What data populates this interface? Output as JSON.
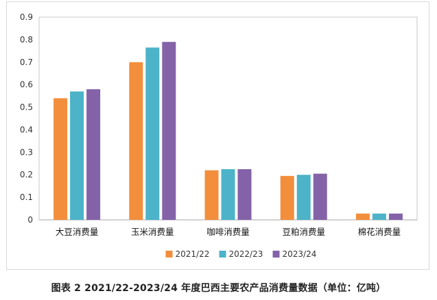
{
  "caption": "图表 2 2021/22-2023/24 年度巴西主要农产品消费量数据（单位：亿吨）",
  "chart_data": {
    "type": "bar",
    "title": "",
    "xlabel": "",
    "ylabel": "",
    "ylim": [
      0,
      0.9
    ],
    "yticks": [
      "0",
      "0.1",
      "0.2",
      "0.3",
      "0.4",
      "0.5",
      "0.6",
      "0.7",
      "0.8",
      "0.9"
    ],
    "grid": false,
    "legend_position": "bottom",
    "categories": [
      "大豆消费量",
      "玉米消费量",
      "咖啡消费量",
      "豆粕消费量",
      "棉花消费量"
    ],
    "series": [
      {
        "name": "2021/22",
        "color": "#f28e3c",
        "values": [
          0.54,
          0.7,
          0.22,
          0.195,
          0.028
        ]
      },
      {
        "name": "2022/23",
        "color": "#4cb3c8",
        "values": [
          0.57,
          0.765,
          0.225,
          0.2,
          0.028
        ]
      },
      {
        "name": "2023/24",
        "color": "#8462a8",
        "values": [
          0.58,
          0.79,
          0.225,
          0.205,
          0.028
        ]
      }
    ]
  }
}
